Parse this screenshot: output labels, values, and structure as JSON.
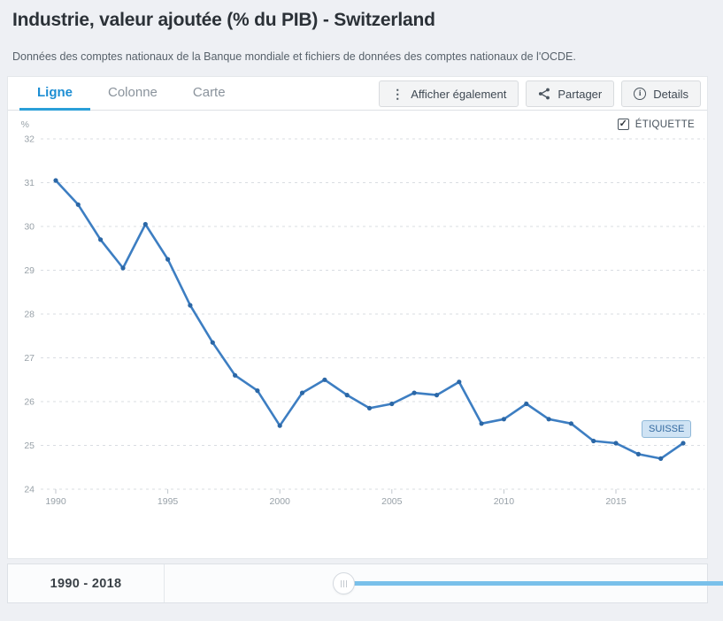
{
  "header": {
    "title": "Industrie, valeur ajoutée (% du PIB) - Switzerland",
    "subtitle": "Données des comptes nationaux de la Banque mondiale et fichiers de données des comptes nationaux de l'OCDE."
  },
  "tabs": [
    {
      "label": "Ligne",
      "active": true
    },
    {
      "label": "Colonne",
      "active": false
    },
    {
      "label": "Carte",
      "active": false
    }
  ],
  "toolbar": {
    "show_also_label": "Afficher également",
    "share_label": "Partager",
    "details_label": "Details",
    "icons": [
      "kebab-icon",
      "share-icon",
      "info-icon"
    ]
  },
  "chart": {
    "label_checkbox": "ÉTIQUETTE",
    "label_checkbox_checked": true,
    "checkmark": "✓",
    "series_badge": "SUISSE"
  },
  "chart_data": {
    "type": "line",
    "title": "Industrie, valeur ajoutée (% du PIB) - Switzerland",
    "ylabel": "%",
    "ylim": [
      24,
      32
    ],
    "yticks": [
      24,
      25,
      26,
      27,
      28,
      29,
      30,
      31,
      32
    ],
    "x_range": [
      1990,
      2018
    ],
    "xticks": [
      1990,
      1995,
      2000,
      2005,
      2010,
      2015
    ],
    "grid": "horizontal-dashed",
    "legend_position": "top-right-checkbox",
    "series": [
      {
        "name": "Suisse",
        "x": [
          1990,
          1991,
          1992,
          1993,
          1994,
          1995,
          1996,
          1997,
          1998,
          1999,
          2000,
          2001,
          2002,
          2003,
          2004,
          2005,
          2006,
          2007,
          2008,
          2009,
          2010,
          2011,
          2012,
          2013,
          2014,
          2015,
          2016,
          2017,
          2018
        ],
        "values": [
          31.05,
          30.5,
          29.7,
          29.05,
          30.05,
          29.25,
          28.2,
          27.35,
          26.6,
          26.25,
          25.45,
          26.2,
          26.5,
          26.15,
          25.85,
          25.95,
          26.2,
          26.15,
          26.45,
          25.5,
          25.6,
          25.95,
          25.6,
          25.5,
          25.1,
          25.05,
          24.8,
          24.7,
          25.05
        ]
      }
    ]
  },
  "footer": {
    "range_label": "1990 - 2018",
    "range_start": "1990",
    "range_end": "2018"
  },
  "colors": {
    "accent_blue": "#2a9fd8",
    "tab_active_text": "#1d8ed3",
    "line_blue": "#3d7ec2",
    "dot_blue": "#2b67a6",
    "track_blue": "#79c0ea",
    "badge_bg": "#cfe3f4",
    "badge_border": "#8fb8d8",
    "badge_text": "#33699f",
    "page_bg": "#eef0f4"
  }
}
